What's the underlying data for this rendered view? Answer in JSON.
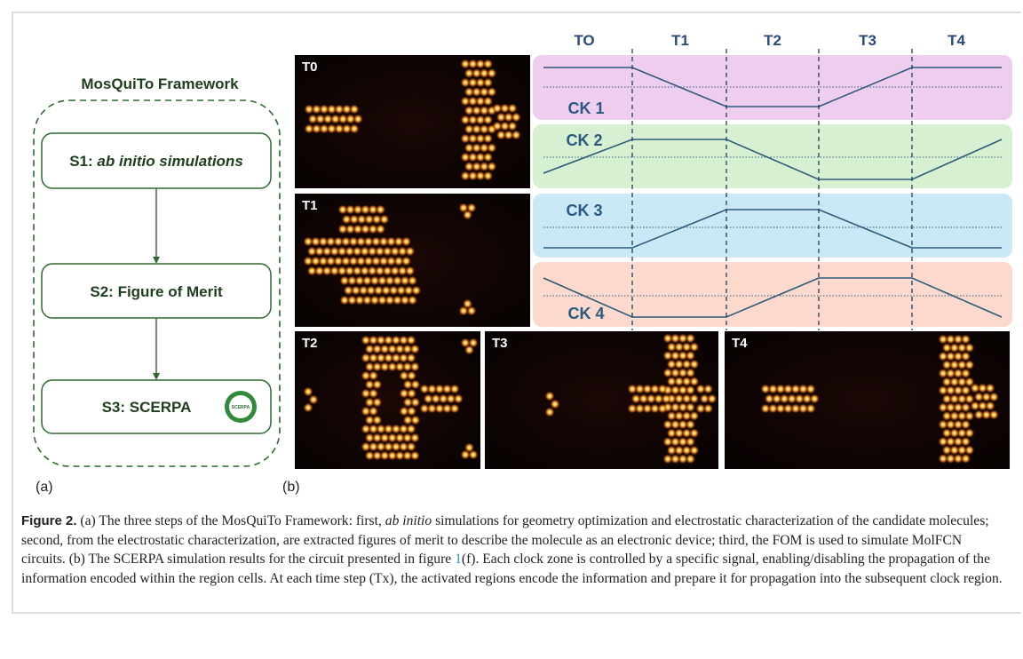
{
  "panel_a": {
    "title": "MosQuiTo Framework",
    "steps": [
      {
        "label": "S1:",
        "text": "ab initio simulations"
      },
      {
        "label": "S2:",
        "text": "Figure of Merit"
      },
      {
        "label": "S3:",
        "text": "SCERPA",
        "logo": "SCERPA"
      }
    ],
    "tag": "(a)"
  },
  "panel_b": {
    "tag": "(b)",
    "time_steps": [
      "TO",
      "T1",
      "T2",
      "T3",
      "T4"
    ],
    "clocks": [
      "CK 1",
      "CK 2",
      "CK 3",
      "CK 4"
    ],
    "frames": [
      "T0",
      "T1",
      "T2",
      "T3",
      "T4"
    ]
  },
  "caption": {
    "label": "Figure 2.",
    "segments": [
      " (a) The three steps of the MosQuiTo Framework: first, ",
      "ab initio",
      " simulations for geometry optimization and electrostatic characterization of the candidate molecules; second, from the electrostatic characterization, are extracted figures of merit to describe the molecule as an electronic device; third, the FOM is used to simulate MolFCN circuits. (b) The SCERPA simulation results for the circuit presented in figure ",
      "1",
      "(f). Each clock zone is controlled by a specific signal, enabling/disabling the propagation of the information encoded within the region cells. At each time step (Tx), the activated regions encode the information and prepare it for propagation into the subsequent clock region."
    ]
  }
}
